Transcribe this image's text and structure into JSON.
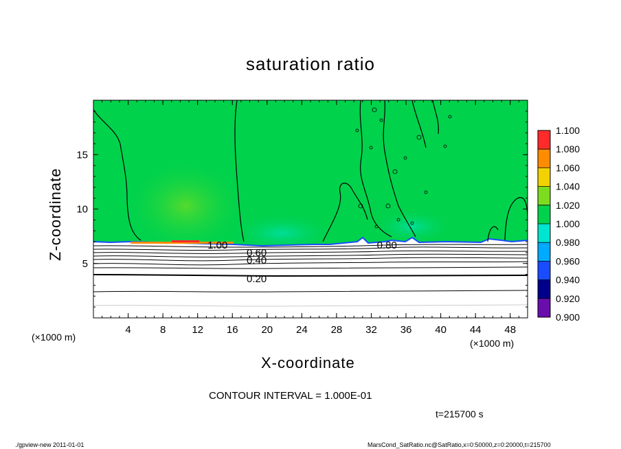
{
  "chart_data": {
    "type": "heatmap",
    "title": "saturation ratio",
    "xlabel": "X-coordinate",
    "ylabel": "Z-coordinate",
    "x_unit_left": "(×1000 m)",
    "x_unit_right": "(×1000 m)",
    "xlim": [
      0,
      50
    ],
    "ylim": [
      0,
      20
    ],
    "x_ticks": [
      4,
      8,
      12,
      16,
      20,
      24,
      28,
      32,
      36,
      40,
      44,
      48
    ],
    "x_tick_labels": [
      "4",
      "8",
      "12",
      "16",
      "20",
      "24",
      "28",
      "32",
      "36",
      "40",
      "44",
      "48"
    ],
    "y_ticks": [
      5,
      10,
      15
    ],
    "y_tick_labels": [
      "5",
      "10",
      "15"
    ],
    "colorbar": {
      "levels": [
        0.9,
        0.92,
        0.94,
        0.96,
        0.98,
        1.0,
        1.02,
        1.04,
        1.06,
        1.08,
        1.1
      ],
      "labels": [
        "0.900",
        "0.920",
        "0.940",
        "0.960",
        "0.980",
        "1.000",
        "1.020",
        "1.040",
        "1.060",
        "1.080",
        "1.100"
      ],
      "colors": [
        "#6a0dad",
        "#00008b",
        "#1a4cff",
        "#00aaff",
        "#00e5d0",
        "#00d24c",
        "#7ddc1f",
        "#f2d200",
        "#ff8c00",
        "#ff2b2b",
        "#ff9a9a"
      ]
    },
    "contour_labels": [
      {
        "text": "0.20",
        "x": 18.8,
        "z": 3.6
      },
      {
        "text": "0.40",
        "x": 18.8,
        "z": 5.3
      },
      {
        "text": "0.60",
        "x": 18.8,
        "z": 6.0
      },
      {
        "text": "0.80",
        "x": 33.8,
        "z": 6.7
      },
      {
        "text": "1.00",
        "x": 14.3,
        "z": 6.7
      }
    ],
    "contour_interval": "CONTOUR INTERVAL = 1.000E-01",
    "time": "t=215700 s"
  },
  "footer": {
    "left": "./gpview-new   2011-01-01",
    "right": "MarsCond_SatRatio.nc@SatRatio,x=0:50000,z=0:20000,t=215700"
  }
}
